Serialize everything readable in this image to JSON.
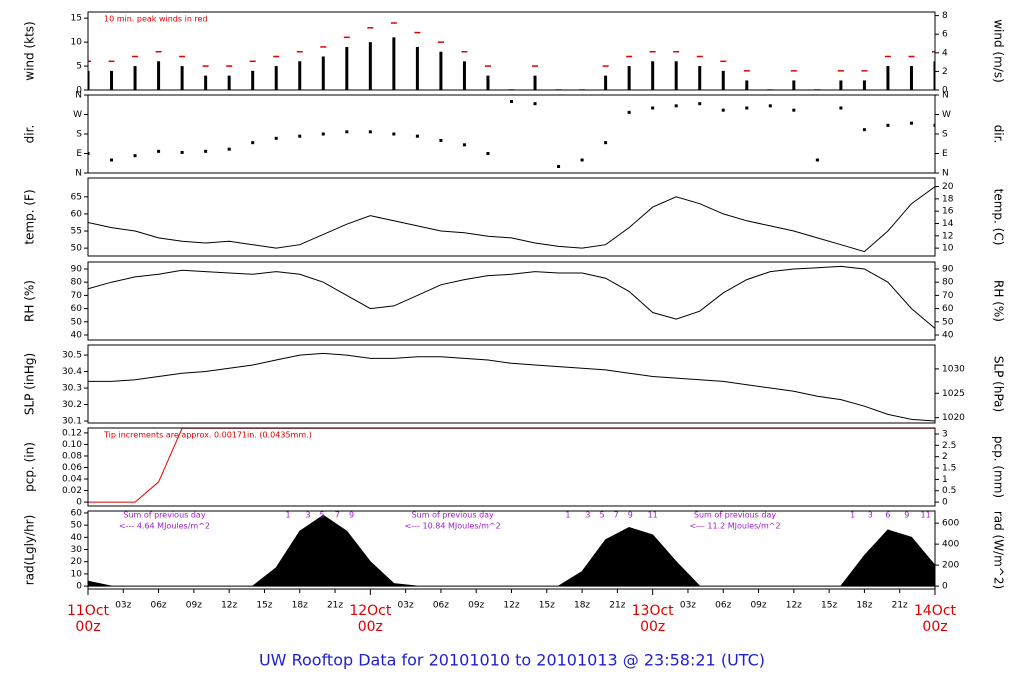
{
  "title": "UW Rooftop Data for 20101010  to  20101013 @ 23:58:21  (UTC)",
  "x_axis": {
    "xlim": [
      0,
      72
    ],
    "xticks": [
      {
        "value": 3,
        "label": "03z"
      },
      {
        "value": 6,
        "label": "06z"
      },
      {
        "value": 9,
        "label": "09z"
      },
      {
        "value": 12,
        "label": "12z"
      },
      {
        "value": 15,
        "label": "15z"
      },
      {
        "value": 18,
        "label": "18z"
      },
      {
        "value": 21,
        "label": "21z"
      },
      {
        "value": 27,
        "label": "03z"
      },
      {
        "value": 30,
        "label": "06z"
      },
      {
        "value": 33,
        "label": "09z"
      },
      {
        "value": 36,
        "label": "12z"
      },
      {
        "value": 39,
        "label": "15z"
      },
      {
        "value": 42,
        "label": "18z"
      },
      {
        "value": 45,
        "label": "21z"
      },
      {
        "value": 51,
        "label": "03z"
      },
      {
        "value": 54,
        "label": "06z"
      },
      {
        "value": 57,
        "label": "09z"
      },
      {
        "value": 60,
        "label": "12z"
      },
      {
        "value": 63,
        "label": "15z"
      },
      {
        "value": 66,
        "label": "18z"
      },
      {
        "value": 69,
        "label": "21z"
      }
    ],
    "date_ticks": [
      {
        "value": 0,
        "date": "11Oct",
        "hour": "00z"
      },
      {
        "value": 24,
        "date": "12Oct",
        "hour": "00z"
      },
      {
        "value": 48,
        "date": "13Oct",
        "hour": "00z"
      },
      {
        "value": 72,
        "date": "14Oct",
        "hour": "00z"
      }
    ]
  },
  "chart_data": [
    {
      "type": "bar",
      "ylabel": "wind (kts)",
      "y2label": "wind (m/s)",
      "annotation": "10 min. peak winds in red",
      "ylim": [
        0,
        16.3
      ],
      "yticks": [
        0,
        5,
        10,
        15
      ],
      "y2lim": [
        0,
        8.39
      ],
      "y2ticks": [
        0,
        2,
        4,
        6,
        8
      ],
      "x": [
        0,
        2,
        4,
        6,
        8,
        10,
        12,
        14,
        16,
        18,
        20,
        22,
        24,
        26,
        28,
        30,
        32,
        34,
        36,
        38,
        40,
        42,
        44,
        46,
        48,
        50,
        52,
        54,
        56,
        58,
        60,
        62,
        64,
        66,
        68,
        70,
        72
      ],
      "series": [
        {
          "color": "#000000",
          "values": [
            4,
            4,
            5,
            6,
            5,
            3,
            3,
            4,
            5,
            6,
            7,
            9,
            10,
            11,
            9,
            8,
            6,
            3,
            0,
            3,
            0,
            0,
            3,
            5,
            6,
            6,
            5,
            4,
            2,
            0,
            2,
            0,
            2,
            2,
            5,
            5,
            6
          ]
        },
        {
          "color": "#e00000",
          "marker": "dash",
          "values": [
            6,
            6,
            7,
            8,
            7,
            5,
            5,
            6,
            7,
            8,
            9,
            11,
            13,
            14,
            12,
            10,
            8,
            5,
            0,
            5,
            0,
            0,
            5,
            7,
            8,
            8,
            7,
            6,
            4,
            0,
            4,
            0,
            4,
            4,
            7,
            7,
            8
          ]
        }
      ]
    },
    {
      "type": "scatter",
      "ylabel": "dir.",
      "y2label": "dir.",
      "ylim": [
        0,
        360
      ],
      "yticks": [
        {
          "value": 0,
          "label": "N"
        },
        {
          "value": 90,
          "label": "E"
        },
        {
          "value": 180,
          "label": "S"
        },
        {
          "value": 270,
          "label": "W"
        },
        {
          "value": 360,
          "label": "N"
        }
      ],
      "y2lim": [
        0,
        360
      ],
      "y2ticks": [
        {
          "value": 0,
          "label": "N"
        },
        {
          "value": 90,
          "label": "E"
        },
        {
          "value": 180,
          "label": "S"
        },
        {
          "value": 270,
          "label": "W"
        },
        {
          "value": 360,
          "label": "N"
        }
      ],
      "x": [
        0,
        2,
        4,
        6,
        8,
        10,
        12,
        14,
        16,
        18,
        20,
        22,
        24,
        26,
        28,
        30,
        32,
        34,
        36,
        38,
        40,
        42,
        44,
        46,
        48,
        50,
        52,
        54,
        56,
        58,
        60,
        62,
        64,
        66,
        68,
        70,
        72
      ],
      "series": [
        {
          "color": "#000000",
          "values": [
            90,
            60,
            80,
            100,
            95,
            100,
            110,
            140,
            160,
            170,
            180,
            190,
            190,
            180,
            170,
            150,
            130,
            90,
            330,
            320,
            30,
            60,
            140,
            280,
            300,
            310,
            320,
            290,
            300,
            310,
            290,
            60,
            300,
            200,
            220,
            230,
            220
          ]
        }
      ]
    },
    {
      "type": "line",
      "ylabel": "temp. (F)",
      "y2label": "temp. (C)",
      "ylim": [
        47.7,
        70.5
      ],
      "yticks": [
        50,
        55,
        60,
        65
      ],
      "y2lim": [
        8.72,
        21.39
      ],
      "y2ticks": [
        10,
        12,
        14,
        16,
        18,
        20
      ],
      "x": [
        0,
        2,
        4,
        6,
        8,
        10,
        12,
        14,
        16,
        18,
        20,
        22,
        24,
        26,
        28,
        30,
        32,
        34,
        36,
        38,
        40,
        42,
        44,
        46,
        48,
        50,
        52,
        54,
        56,
        58,
        60,
        62,
        64,
        66,
        68,
        70,
        72
      ],
      "series": [
        {
          "color": "#000000",
          "values": [
            57.5,
            56,
            55,
            53,
            52,
            51.5,
            52,
            51,
            50,
            51,
            54,
            57,
            59.5,
            58,
            56.5,
            55,
            54.5,
            53.5,
            53,
            51.5,
            50.5,
            50,
            51,
            56,
            62,
            65,
            63,
            60,
            58,
            56.5,
            55,
            53,
            51,
            49,
            55,
            63,
            68
          ]
        }
      ]
    },
    {
      "type": "line",
      "ylabel": "RH (%)",
      "y2label": "RH (%)",
      "ylim": [
        36.2,
        95.3
      ],
      "yticks": [
        40,
        50,
        60,
        70,
        80,
        90
      ],
      "y2lim": [
        36.2,
        95.3
      ],
      "y2ticks": [
        40,
        50,
        60,
        70,
        80,
        90
      ],
      "x": [
        0,
        2,
        4,
        6,
        8,
        10,
        12,
        14,
        16,
        18,
        20,
        22,
        24,
        26,
        28,
        30,
        32,
        34,
        36,
        38,
        40,
        42,
        44,
        46,
        48,
        50,
        52,
        54,
        56,
        58,
        60,
        62,
        64,
        66,
        68,
        70,
        72
      ],
      "series": [
        {
          "color": "#000000",
          "values": [
            75,
            80,
            84,
            86,
            89,
            88,
            87,
            86,
            88,
            86,
            80,
            70,
            60,
            62,
            70,
            78,
            82,
            85,
            86,
            88,
            87,
            87,
            83,
            73,
            57,
            52,
            58,
            72,
            82,
            88,
            90,
            91,
            92,
            90,
            80,
            60,
            45
          ]
        }
      ]
    },
    {
      "type": "line",
      "ylabel": "SLP (inHg)",
      "y2label": "SLP (hPa)",
      "ylim": [
        30.088,
        30.561
      ],
      "yticks": [
        30.1,
        30.2,
        30.3,
        30.4,
        30.5
      ],
      "y2lim": [
        1018.9,
        1034.9
      ],
      "y2ticks": [
        1020,
        1025,
        1030
      ],
      "x": [
        0,
        2,
        4,
        6,
        8,
        10,
        12,
        14,
        16,
        18,
        20,
        22,
        24,
        26,
        28,
        30,
        32,
        34,
        36,
        38,
        40,
        42,
        44,
        46,
        48,
        50,
        52,
        54,
        56,
        58,
        60,
        62,
        64,
        66,
        68,
        70,
        72
      ],
      "series": [
        {
          "color": "#000000",
          "values": [
            30.34,
            30.34,
            30.35,
            30.37,
            30.39,
            30.4,
            30.42,
            30.44,
            30.47,
            30.5,
            30.51,
            30.5,
            30.48,
            30.48,
            30.49,
            30.49,
            30.48,
            30.47,
            30.45,
            30.44,
            30.43,
            30.42,
            30.41,
            30.39,
            30.37,
            30.36,
            30.35,
            30.34,
            30.32,
            30.3,
            30.28,
            30.25,
            30.23,
            30.19,
            30.14,
            30.11,
            30.1
          ]
        }
      ]
    },
    {
      "type": "line",
      "ylabel": "pcp. (in)",
      "y2label": "pcp. (mm)",
      "annotation": "Tip increments are approx. 0.00171in. (0.0435mm.)",
      "ylim": [
        -0.0068,
        0.1285
      ],
      "yticks": [
        0,
        0.02,
        0.04,
        0.06,
        0.08,
        {
          "value": 0.1,
          "label": "0.10"
        },
        0.12
      ],
      "y2lim": [
        -0.172,
        3.264
      ],
      "y2ticks": [
        0,
        0.5,
        1,
        1.5,
        2,
        2.5,
        3
      ],
      "x": [
        0,
        2,
        4,
        6,
        8,
        10,
        12,
        14,
        16,
        18,
        20,
        22,
        24,
        26,
        28,
        30,
        32,
        34,
        36,
        38,
        40,
        42,
        44,
        46,
        48,
        50,
        52,
        54,
        56,
        58,
        60,
        62,
        64,
        66,
        68,
        70,
        72
      ],
      "series": [
        {
          "color": "#e00000",
          "values": [
            0,
            0,
            0,
            0.035,
            0.128,
            0.128,
            0.128,
            0.128,
            0.128,
            0.128,
            0.128,
            0.128,
            0.128,
            0.128,
            0.128,
            0.128,
            0.128,
            0.128,
            0.128,
            0.128,
            0.128,
            0.128,
            0.128,
            0.128,
            0.128,
            0.128,
            0.128,
            0.128,
            0.128,
            0.128,
            0.128,
            0.128,
            0.128,
            0.128,
            0.128,
            0.128,
            0.128
          ]
        }
      ]
    },
    {
      "type": "area",
      "ylabel": "rad(Lgly/hr)",
      "y2label": "rad (W/m^2)",
      "ylim": [
        -2.4,
        61.6
      ],
      "yticks": [
        0,
        10,
        20,
        30,
        40,
        50,
        60
      ],
      "y2lim": [
        -27.9,
        716
      ],
      "y2ticks": [
        0,
        200,
        400,
        600
      ],
      "x": [
        0,
        2,
        4,
        6,
        8,
        10,
        12,
        14,
        16,
        18,
        20,
        22,
        24,
        26,
        28,
        30,
        32,
        34,
        36,
        38,
        40,
        42,
        44,
        46,
        48,
        50,
        52,
        54,
        56,
        58,
        60,
        62,
        64,
        66,
        68,
        70,
        72
      ],
      "series": [
        {
          "color": "#000000",
          "values": [
            4,
            0,
            0,
            0,
            0,
            0,
            0,
            0,
            15,
            45,
            58,
            45,
            20,
            2,
            0,
            0,
            0,
            0,
            0,
            0,
            0,
            12,
            38,
            48,
            42,
            20,
            0,
            0,
            0,
            0,
            0,
            0,
            0,
            25,
            46,
            40,
            17
          ]
        }
      ],
      "annotations": [
        {
          "x": 6.5,
          "lines": [
            "Sum of previous day",
            "<--- 4.64 MJoules/m^2"
          ]
        },
        {
          "x": 31,
          "lines": [
            "Sum of previous day",
            "<--- 10.84 MJoules/m^2"
          ]
        },
        {
          "x": 55,
          "lines": [
            "Sum of previous day",
            "<--- 11.2 MJoules/m^2"
          ]
        }
      ],
      "hour_marks": [
        {
          "x": 17,
          "text": "1"
        },
        {
          "x": 18.7,
          "text": "3"
        },
        {
          "x": 19.9,
          "text": "5"
        },
        {
          "x": 21.2,
          "text": "7"
        },
        {
          "x": 22.4,
          "text": "9"
        },
        {
          "x": 40.8,
          "text": "1"
        },
        {
          "x": 42.5,
          "text": "3"
        },
        {
          "x": 43.7,
          "text": "5"
        },
        {
          "x": 44.9,
          "text": "7"
        },
        {
          "x": 46.1,
          "text": "9"
        },
        {
          "x": 48,
          "text": "11"
        },
        {
          "x": 65,
          "text": "1"
        },
        {
          "x": 66.5,
          "text": "3"
        },
        {
          "x": 68,
          "text": "6"
        },
        {
          "x": 69.6,
          "text": "9"
        },
        {
          "x": 71.2,
          "text": "11"
        }
      ]
    }
  ]
}
